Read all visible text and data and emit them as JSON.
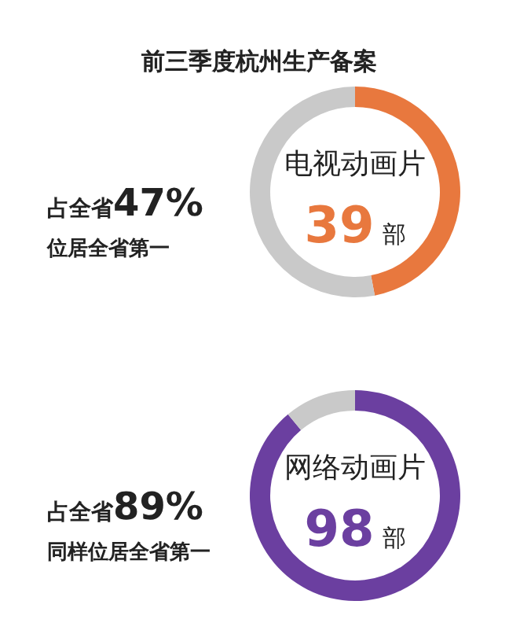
{
  "chart_data": [
    {
      "type": "donut",
      "title": "前三季度杭州生产备案",
      "categories": [
        null,
        null
      ],
      "values": [
        47,
        53
      ],
      "colors": [
        "#e8783e",
        "#c9c9c9"
      ],
      "annotations": [
        "电视动画片",
        "39",
        "部",
        "占全省",
        "47%",
        "位居全省第一"
      ]
    },
    {
      "type": "donut",
      "categories": [
        null,
        null
      ],
      "values": [
        89,
        11
      ],
      "colors": [
        "#6b3fa0",
        "#c9c9c9"
      ],
      "annotations": [
        "网络动画片",
        "98",
        "部",
        "占全省",
        "89%",
        "同样位居全省第一"
      ]
    }
  ]
}
